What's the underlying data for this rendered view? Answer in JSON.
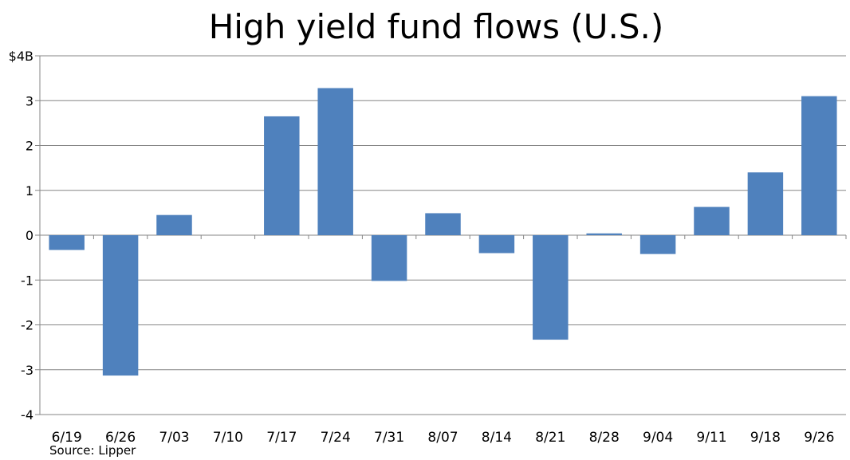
{
  "chart_data": {
    "type": "bar",
    "title": "High yield fund flows (U.S.)",
    "source": "Source: Lipper",
    "categories": [
      "6/19",
      "6/26",
      "7/03",
      "7/10",
      "7/17",
      "7/24",
      "7/31",
      "8/07",
      "8/14",
      "8/21",
      "8/28",
      "9/04",
      "9/11",
      "9/18",
      "9/26"
    ],
    "values": [
      -0.33,
      -3.13,
      0.45,
      0.0,
      2.65,
      3.28,
      -1.02,
      0.49,
      -0.4,
      -2.33,
      0.04,
      -0.42,
      0.63,
      1.4,
      3.1
    ],
    "ylim": [
      -4,
      4
    ],
    "yticks": [
      {
        "value": 4,
        "label": "$4B"
      },
      {
        "value": 3,
        "label": "3"
      },
      {
        "value": 2,
        "label": "2"
      },
      {
        "value": 1,
        "label": "1"
      },
      {
        "value": 0,
        "label": "0"
      },
      {
        "value": -1,
        "label": "-1"
      },
      {
        "value": -2,
        "label": "-2"
      },
      {
        "value": -3,
        "label": "-3"
      },
      {
        "value": -4,
        "label": "-4"
      }
    ],
    "grid": true,
    "bar_color": "#4F81BD",
    "grid_color": "#868686"
  }
}
